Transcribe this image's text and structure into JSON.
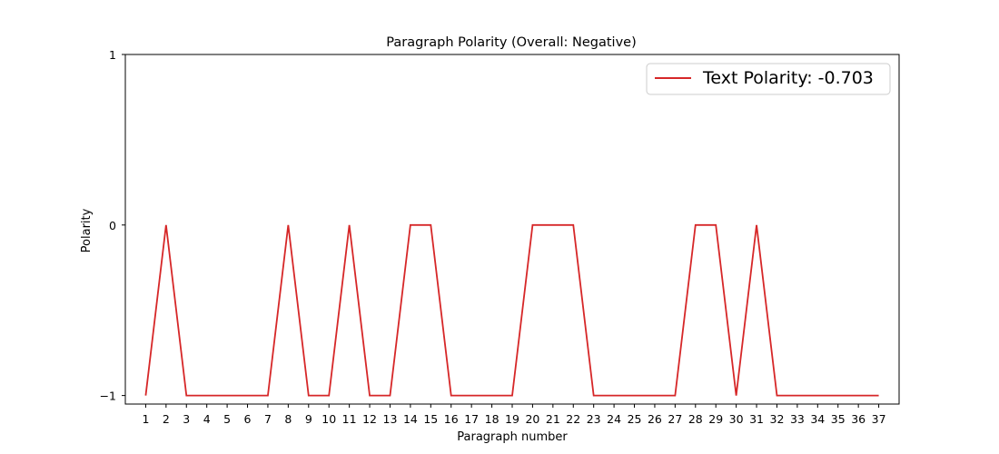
{
  "chart_data": {
    "type": "line",
    "title": "Paragraph Polarity (Overall: Negative)",
    "xlabel": "Paragraph number",
    "ylabel": "Polarity",
    "x": [
      1,
      2,
      3,
      4,
      5,
      6,
      7,
      8,
      9,
      10,
      11,
      12,
      13,
      14,
      15,
      16,
      17,
      18,
      19,
      20,
      21,
      22,
      23,
      24,
      25,
      26,
      27,
      28,
      29,
      30,
      31,
      32,
      33,
      34,
      35,
      36,
      37
    ],
    "series": [
      {
        "name": "Text Polarity: -0.703",
        "color": "#d62728",
        "values": [
          -1,
          0,
          -1,
          -1,
          -1,
          -1,
          -1,
          0,
          -1,
          -1,
          0,
          -1,
          -1,
          0,
          0,
          -1,
          -1,
          -1,
          -1,
          0,
          0,
          0,
          -1,
          -1,
          -1,
          -1,
          -1,
          0,
          0,
          -1,
          0,
          -1,
          -1,
          -1,
          -1,
          -1,
          -1
        ]
      }
    ],
    "xlim": [
      0.0,
      38.0
    ],
    "ylim": [
      -1.05,
      1.0
    ],
    "yticks": [
      -1,
      0,
      1
    ],
    "ytick_labels": [
      "−1",
      "0",
      "1"
    ],
    "xtick_labels": [
      "1",
      "2",
      "3",
      "4",
      "5",
      "6",
      "7",
      "8",
      "9",
      "10",
      "11",
      "12",
      "13",
      "14",
      "15",
      "16",
      "17",
      "18",
      "19",
      "20",
      "21",
      "22",
      "23",
      "24",
      "25",
      "26",
      "27",
      "28",
      "29",
      "30",
      "31",
      "32",
      "33",
      "34",
      "35",
      "36",
      "37"
    ],
    "grid": false,
    "legend_position": "top-right"
  }
}
